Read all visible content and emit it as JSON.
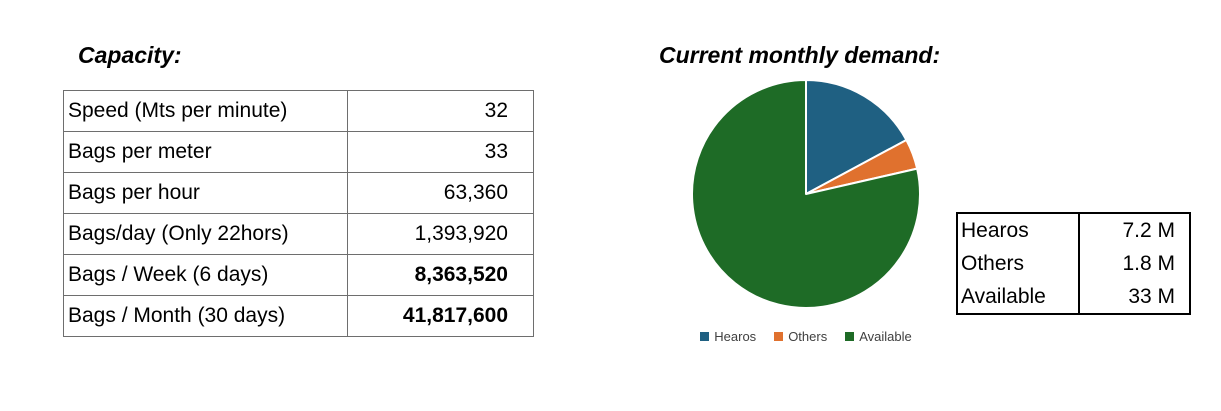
{
  "left": {
    "title": "Capacity:",
    "table": {
      "rows": [
        {
          "label": "Speed (Mts per minute)",
          "value": "32"
        },
        {
          "label": "Bags per meter",
          "value": "33"
        },
        {
          "label": "Bags per hour",
          "value": "63,360"
        },
        {
          "label": "Bags/day (Only 22hors)",
          "value": "1,393,920"
        },
        {
          "label": "Bags / Week (6 days)",
          "value": "8,363,520"
        },
        {
          "label": "Bags / Month (30 days)",
          "value": "41,817,600"
        }
      ]
    }
  },
  "right": {
    "title": "Current monthly demand:",
    "demand_table": {
      "rows": [
        {
          "label": "Hearos",
          "value": "7.2 M"
        },
        {
          "label": "Others",
          "value": "1.8 M"
        },
        {
          "label": "Available",
          "value": "33 M"
        }
      ]
    }
  },
  "chart_data": {
    "type": "pie",
    "title": "Current monthly demand:",
    "categories": [
      "Hearos",
      "Others",
      "Available"
    ],
    "values": [
      7.2,
      1.8,
      33
    ],
    "unit": "M (millions of bags)",
    "colors": [
      "#1F6082",
      "#E0712E",
      "#1E6B26"
    ],
    "start_angle_deg": 0,
    "direction": "clockwise",
    "slice_separator_color": "#ffffff",
    "legend_position": "bottom",
    "legend": [
      "Hearos",
      "Others",
      "Available"
    ]
  }
}
